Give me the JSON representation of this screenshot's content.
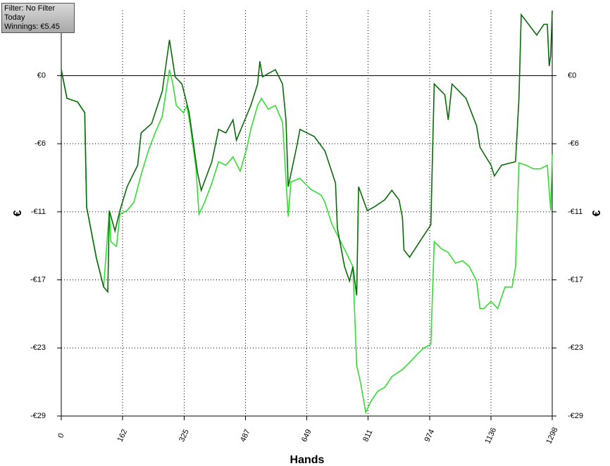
{
  "info": {
    "filter": "Filter: No Filter",
    "period": "Today",
    "winnings": "Winnings: €5.45"
  },
  "chart_data": {
    "type": "line",
    "x_label": "Hands",
    "y_label": "€",
    "y2_label": "€",
    "xlim": [
      0,
      1298
    ],
    "xticks": [
      0,
      162,
      325,
      487,
      649,
      811,
      974,
      1136,
      1298
    ],
    "ylim": [
      -28.5,
      5.45
    ],
    "yticks": [
      {
        "value": 0,
        "label": "€0"
      },
      {
        "value": -5.7,
        "label": "-€6"
      },
      {
        "value": -11.4,
        "label": "-€11"
      },
      {
        "value": -17.1,
        "label": "-€17"
      },
      {
        "value": -22.8,
        "label": "-€23"
      },
      {
        "value": -28.5,
        "label": "-€29"
      }
    ],
    "grid": true,
    "series": [
      {
        "color": "#33dd33",
        "x": [
          0,
          15,
          43,
          62,
          67,
          93,
          112,
          127,
          131,
          146,
          155,
          174,
          192,
          211,
          230,
          248,
          267,
          286,
          295,
          304,
          323,
          332,
          341,
          356,
          364,
          379,
          398,
          416,
          435,
          454,
          473,
          491,
          501,
          519,
          529,
          547,
          566,
          585,
          600,
          607,
          631,
          659,
          687,
          697,
          715,
          734,
          753,
          771,
          781,
          790,
          805,
          818,
          837,
          855,
          874,
          902,
          921,
          939,
          958,
          977,
          986,
          1005,
          1023,
          1042,
          1061,
          1079,
          1098,
          1107,
          1117,
          1136,
          1154,
          1173,
          1192,
          1201,
          1210,
          1229,
          1248,
          1266,
          1285,
          1294,
          1298
        ],
        "values": [
          0.5,
          -1.9,
          -2.2,
          -3.1,
          -11.0,
          -15.3,
          -17.7,
          -11.3,
          -13.9,
          -14.3,
          -11.6,
          -11.3,
          -10.6,
          -8.3,
          -6.3,
          -4.8,
          -3.4,
          0.5,
          -0.7,
          -2.5,
          -3.1,
          -2.5,
          -4.2,
          -7.7,
          -11.6,
          -10.6,
          -9.0,
          -7.2,
          -7.5,
          -6.8,
          -8.0,
          -6.0,
          -4.5,
          -2.5,
          -1.9,
          -2.8,
          -2.5,
          -3.9,
          -11.8,
          -8.9,
          -8.6,
          -9.5,
          -10.0,
          -10.6,
          -12.4,
          -13.6,
          -14.8,
          -16.0,
          -24.3,
          -25.5,
          -28.2,
          -27.3,
          -26.4,
          -26.1,
          -25.2,
          -24.6,
          -24.0,
          -23.4,
          -22.8,
          -22.5,
          -13.9,
          -14.5,
          -14.8,
          -15.7,
          -15.5,
          -16.0,
          -17.2,
          -19.5,
          -19.5,
          -18.9,
          -19.5,
          -17.7,
          -17.7,
          -16.0,
          -7.3,
          -7.5,
          -7.8,
          -7.8,
          -7.5,
          -11.3,
          -6.6
        ]
      },
      {
        "color": "#0a6b0a",
        "x": [
          0,
          15,
          43,
          62,
          67,
          93,
          112,
          123,
          127,
          142,
          155,
          174,
          202,
          211,
          239,
          267,
          286,
          301,
          319,
          338,
          360,
          370,
          398,
          416,
          435,
          454,
          463,
          501,
          519,
          525,
          532,
          566,
          585,
          594,
          600,
          622,
          631,
          669,
          697,
          725,
          730,
          749,
          762,
          771,
          781,
          786,
          809,
          827,
          855,
          874,
          893,
          902,
          906,
          921,
          958,
          977,
          986,
          1014,
          1023,
          1033,
          1070,
          1098,
          1107,
          1136,
          1145,
          1164,
          1201,
          1210,
          1216,
          1257,
          1276,
          1285,
          1290,
          1294,
          1298
        ],
        "values": [
          0.5,
          -1.9,
          -2.2,
          -3.1,
          -11.0,
          -15.3,
          -17.7,
          -18.1,
          -11.3,
          -13.0,
          -11.3,
          -9.3,
          -7.5,
          -4.8,
          -4.0,
          -1.3,
          3.0,
          -0.1,
          -0.7,
          -3.1,
          -8.1,
          -9.6,
          -7.2,
          -4.5,
          -4.8,
          -3.7,
          -5.4,
          -2.5,
          -0.7,
          1.2,
          -0.1,
          0.5,
          -0.7,
          -3.7,
          -9.3,
          -6.0,
          -4.5,
          -5.1,
          -6.3,
          -9.0,
          -12.8,
          -16.0,
          -17.2,
          -16.0,
          -18.4,
          -9.3,
          -11.3,
          -11.0,
          -10.4,
          -9.6,
          -10.4,
          -11.9,
          -14.6,
          -15.2,
          -13.4,
          -12.5,
          -0.7,
          -1.6,
          -3.7,
          -0.7,
          -1.9,
          -4.2,
          -6.0,
          -7.5,
          -8.4,
          -7.5,
          -7.2,
          -1.9,
          5.1,
          3.4,
          4.3,
          4.3,
          0.8,
          1.7,
          5.45
        ]
      }
    ]
  }
}
